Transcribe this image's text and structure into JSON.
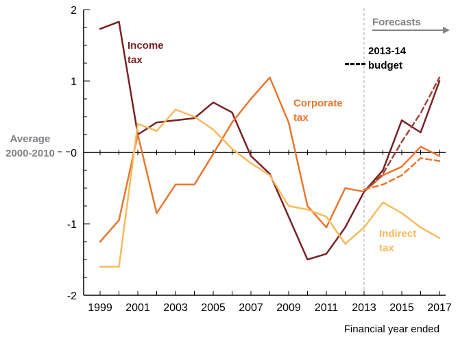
{
  "chart_data": {
    "type": "line",
    "x": [
      1999,
      2000,
      2001,
      2002,
      2003,
      2004,
      2005,
      2006,
      2007,
      2008,
      2009,
      2010,
      2011,
      2012,
      2013,
      2014,
      2015,
      2016,
      2017
    ],
    "series": [
      {
        "name": "Income tax",
        "style": "solid",
        "color": "#7a2024",
        "values": [
          1.73,
          1.83,
          0.25,
          0.42,
          0.45,
          0.48,
          0.7,
          0.56,
          -0.05,
          -0.3,
          -0.9,
          -1.5,
          -1.42,
          -1.05,
          -0.55,
          -0.25,
          0.45,
          0.28,
          1.0
        ]
      },
      {
        "name": "Corporate tax",
        "style": "solid",
        "color": "#e8762d",
        "values": [
          -1.25,
          -0.95,
          0.25,
          -0.85,
          -0.45,
          -0.45,
          -0.02,
          0.42,
          0.75,
          1.05,
          0.42,
          -0.75,
          -1.05,
          -0.5,
          -0.55,
          -0.32,
          -0.2,
          0.08,
          -0.05
        ]
      },
      {
        "name": "Indirect tax",
        "style": "solid",
        "color": "#f9b95c",
        "values": [
          -1.6,
          -1.6,
          0.4,
          0.3,
          0.6,
          0.5,
          0.32,
          0.05,
          -0.15,
          -0.32,
          -0.75,
          -0.8,
          -0.9,
          -1.28,
          -1.05,
          -0.7,
          -0.85,
          -1.05,
          -1.2
        ]
      },
      {
        "name": "Income tax 2013-14 budget forecast",
        "style": "dashed",
        "color": "#a0453c",
        "values": [
          null,
          null,
          null,
          null,
          null,
          null,
          null,
          null,
          null,
          null,
          null,
          null,
          null,
          null,
          -0.55,
          -0.3,
          0.15,
          0.55,
          1.05
        ]
      },
      {
        "name": "Corporate tax 2013-14 budget forecast",
        "style": "dashed",
        "color": "#e8762d",
        "values": [
          null,
          null,
          null,
          null,
          null,
          null,
          null,
          null,
          null,
          null,
          null,
          null,
          null,
          null,
          -0.52,
          -0.45,
          -0.32,
          -0.08,
          -0.12
        ]
      }
    ],
    "ylim": [
      -2,
      2
    ],
    "yticks": [
      2,
      1,
      0,
      -1,
      -2
    ],
    "xticks": [
      1999,
      2001,
      2003,
      2005,
      2007,
      2009,
      2011,
      2013,
      2015,
      2017
    ],
    "xlabel": "Financial year ended",
    "forecast_divider_x": 2013,
    "grid": false,
    "legend_position": "annotations-on-chart"
  },
  "labels": {
    "average_line1": "Average",
    "average_line2": "2000-2010",
    "income_line1": "Income",
    "income_line2": "tax",
    "corporate_line1": "Corporate",
    "corporate_line2": "tax",
    "indirect_line1": "Indirect",
    "indirect_line2": "tax",
    "forecasts": "Forecasts",
    "budget_line1": "2013-14",
    "budget_line2": "budget"
  },
  "colors": {
    "income": "#7a2024",
    "income_forecast": "#a0453c",
    "corporate": "#e8762d",
    "indirect": "#f9b95c",
    "gray": "#808285",
    "axis": "#000000",
    "forecast_divider": "#a7a9ac"
  }
}
